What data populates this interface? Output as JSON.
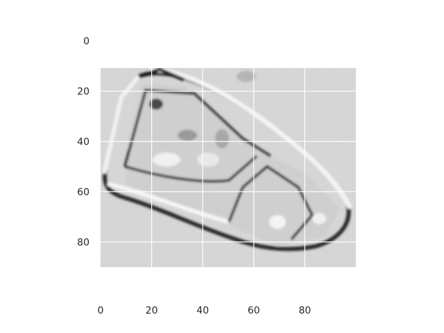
{
  "image": {
    "description_free": true,
    "colormap": "gray",
    "background": "#ffffff",
    "grid_color": "#ffffff",
    "extent": {
      "x": [
        0,
        100
      ],
      "y": [
        0,
        90
      ]
    }
  },
  "axes": {
    "x_ticks": [
      0,
      20,
      40,
      60,
      80
    ],
    "y_ticks": [
      0,
      20,
      40,
      60,
      80
    ],
    "x_range": [
      0,
      100
    ],
    "y_range": [
      0,
      90
    ],
    "y_inverted": true,
    "grid": true
  },
  "blank_rows": [
    0,
    11
  ]
}
